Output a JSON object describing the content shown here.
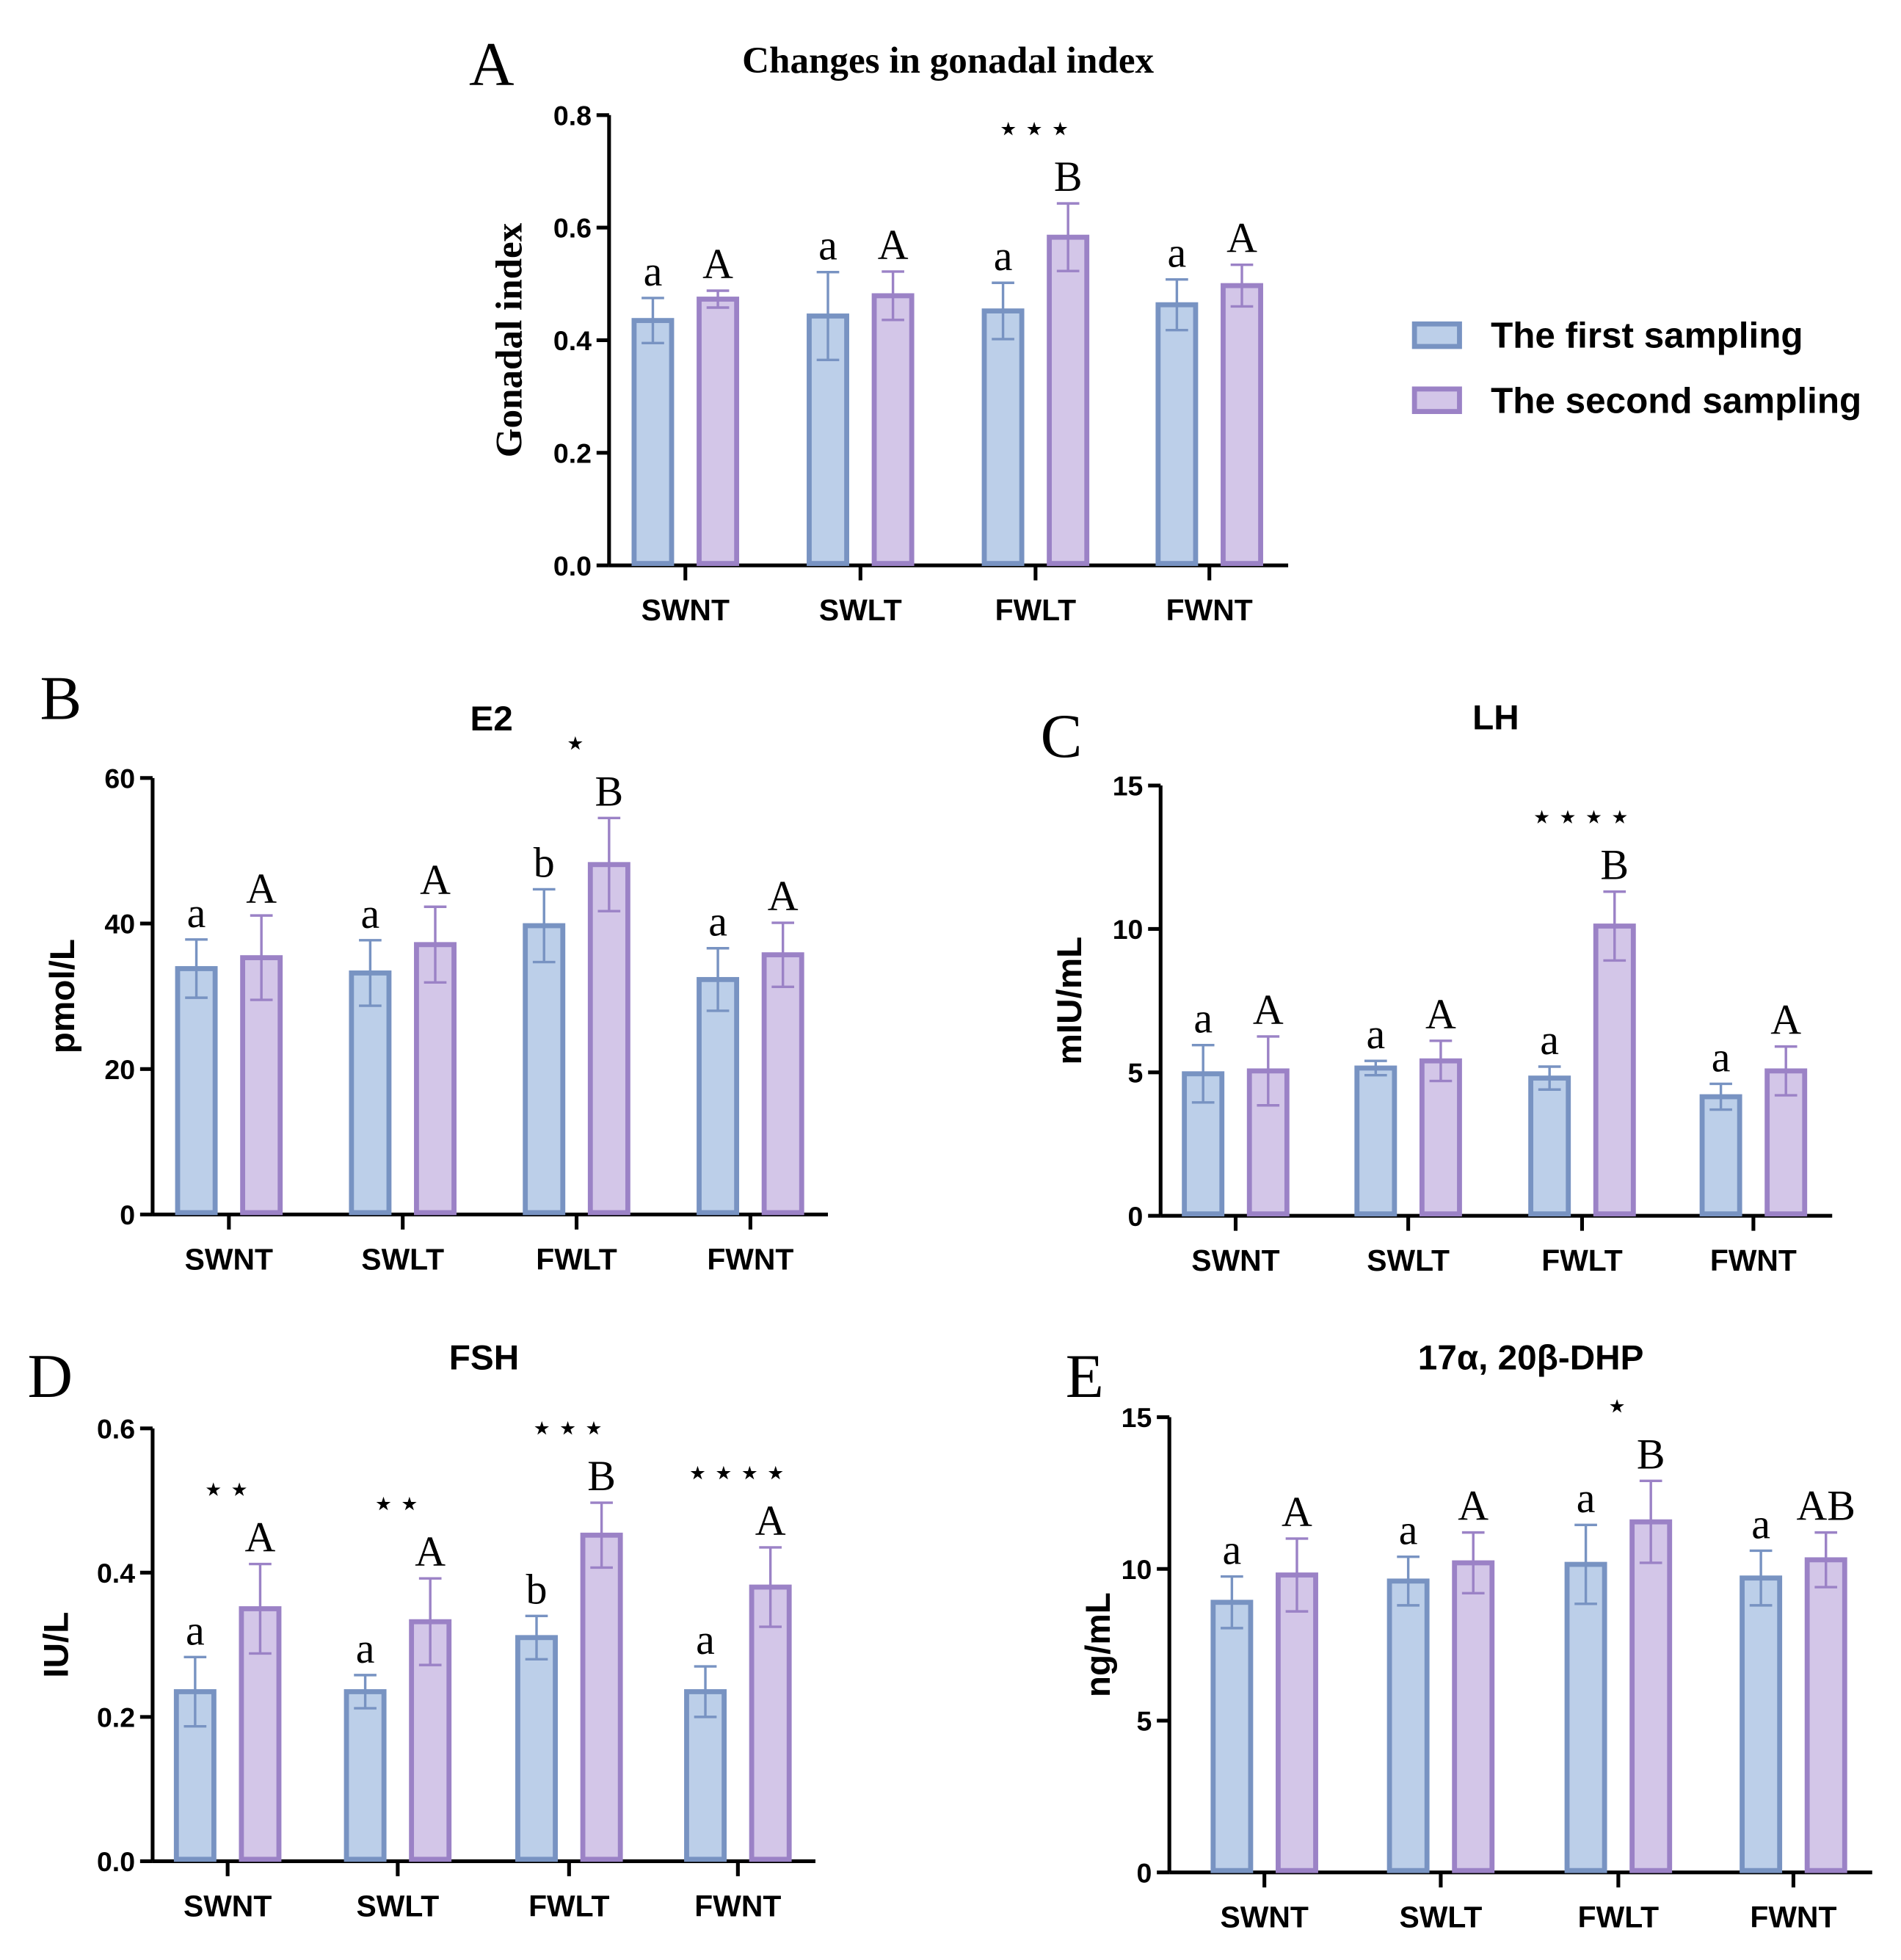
{
  "legend": {
    "items": [
      {
        "label": "The first sampling",
        "fill": "#bccfe9",
        "stroke": "#7893c2"
      },
      {
        "label": "The second sampling",
        "fill": "#d3c6e8",
        "stroke": "#9b82c6"
      }
    ]
  },
  "chart_data": [
    {
      "panel": "A",
      "type": "bar",
      "title": "Changes in gonadal index",
      "ylabel": "Gonadal index",
      "xlabel": "",
      "categories": [
        "SWNT",
        "SWLT",
        "FWLT",
        "FWNT"
      ],
      "ylim": [
        0,
        0.8
      ],
      "yticks": [
        0,
        0.2,
        0.4,
        0.6,
        0.8
      ],
      "ytick_labels": [
        "0.0",
        "0.2",
        "0.4",
        "0.6",
        "0.8"
      ],
      "series": [
        {
          "name": "The first sampling",
          "values": [
            0.435,
            0.443,
            0.452,
            0.463
          ],
          "errors": [
            0.04,
            0.078,
            0.05,
            0.045
          ],
          "letters": [
            "a",
            "a",
            "a",
            "a"
          ]
        },
        {
          "name": "The second sampling",
          "values": [
            0.473,
            0.479,
            0.583,
            0.497
          ],
          "errors": [
            0.015,
            0.043,
            0.06,
            0.037
          ],
          "letters": [
            "A",
            "A",
            "B",
            "A"
          ]
        }
      ],
      "significance": [
        "",
        "",
        "***",
        ""
      ]
    },
    {
      "panel": "B",
      "type": "bar",
      "title": "E2",
      "ylabel": "pmol/L",
      "xlabel": "",
      "categories": [
        "SWNT",
        "SWLT",
        "FWLT",
        "FWNT"
      ],
      "ylim": [
        0,
        60
      ],
      "yticks": [
        0,
        20,
        40,
        60
      ],
      "ytick_labels": [
        "0",
        "20",
        "40",
        "60"
      ],
      "series": [
        {
          "name": "The first sampling",
          "values": [
            33.8,
            33.2,
            39.7,
            32.3
          ],
          "errors": [
            4.0,
            4.5,
            5.0,
            4.3
          ],
          "letters": [
            "a",
            "a",
            "b",
            "a"
          ]
        },
        {
          "name": "The second sampling",
          "values": [
            35.3,
            37.1,
            48.1,
            35.7
          ],
          "errors": [
            5.8,
            5.2,
            6.4,
            4.4
          ],
          "letters": [
            "A",
            "A",
            "B",
            "A"
          ]
        }
      ],
      "significance": [
        "",
        "",
        "*",
        ""
      ]
    },
    {
      "panel": "C",
      "type": "bar",
      "title": "LH",
      "ylabel": "mIU/mL",
      "xlabel": "",
      "categories": [
        "SWNT",
        "SWLT",
        "FWLT",
        "FWNT"
      ],
      "ylim": [
        0,
        15
      ],
      "yticks": [
        0,
        5,
        10,
        15
      ],
      "ytick_labels": [
        "0",
        "5",
        "10",
        "15"
      ],
      "series": [
        {
          "name": "The first sampling",
          "values": [
            4.95,
            5.15,
            4.8,
            4.15
          ],
          "errors": [
            1.0,
            0.25,
            0.4,
            0.45
          ],
          "letters": [
            "a",
            "a",
            "a",
            "a"
          ]
        },
        {
          "name": "The second sampling",
          "values": [
            5.05,
            5.4,
            10.1,
            5.05
          ],
          "errors": [
            1.2,
            0.7,
            1.2,
            0.85
          ],
          "letters": [
            "A",
            "A",
            "B",
            "A"
          ]
        }
      ],
      "significance": [
        "",
        "",
        "****",
        ""
      ]
    },
    {
      "panel": "D",
      "type": "bar",
      "title": "FSH",
      "ylabel": "IU/L",
      "xlabel": "",
      "categories": [
        "SWNT",
        "SWLT",
        "FWLT",
        "FWNT"
      ],
      "ylim": [
        0,
        0.6
      ],
      "yticks": [
        0,
        0.2,
        0.4,
        0.6
      ],
      "ytick_labels": [
        "0.0",
        "0.2",
        "0.4",
        "0.6"
      ],
      "series": [
        {
          "name": "The first sampling",
          "values": [
            0.235,
            0.235,
            0.31,
            0.235
          ],
          "errors": [
            0.048,
            0.023,
            0.03,
            0.035
          ],
          "letters": [
            "a",
            "a",
            "b",
            "a"
          ]
        },
        {
          "name": "The second sampling",
          "values": [
            0.35,
            0.332,
            0.452,
            0.38
          ],
          "errors": [
            0.062,
            0.06,
            0.045,
            0.055
          ],
          "letters": [
            "A",
            "A",
            "B",
            "A"
          ]
        }
      ],
      "significance": [
        "**",
        "**",
        "***",
        "****"
      ]
    },
    {
      "panel": "E",
      "type": "bar",
      "title": "17α, 20β-DHP",
      "ylabel": "ng/mL",
      "xlabel": "",
      "categories": [
        "SWNT",
        "SWLT",
        "FWLT",
        "FWNT"
      ],
      "ylim": [
        0,
        15
      ],
      "yticks": [
        0,
        5,
        10,
        15
      ],
      "ytick_labels": [
        "0",
        "5",
        "10",
        "15"
      ],
      "series": [
        {
          "name": "The first sampling",
          "values": [
            8.9,
            9.6,
            10.15,
            9.7
          ],
          "errors": [
            0.85,
            0.8,
            1.3,
            0.9
          ],
          "letters": [
            "a",
            "a",
            "a",
            "a"
          ]
        },
        {
          "name": "The second sampling",
          "values": [
            9.8,
            10.2,
            11.55,
            10.3
          ],
          "errors": [
            1.2,
            1.0,
            1.35,
            0.9
          ],
          "letters": [
            "A",
            "A",
            "B",
            "AB"
          ]
        }
      ],
      "significance": [
        "",
        "",
        "*",
        ""
      ]
    }
  ]
}
